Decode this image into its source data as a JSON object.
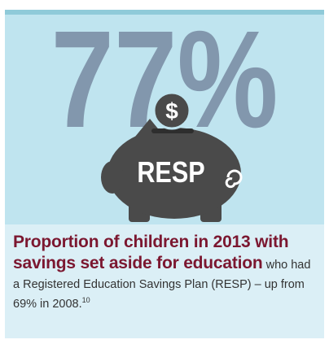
{
  "stat": {
    "text": "77%"
  },
  "icon": {
    "coin": "$",
    "label": "RESP"
  },
  "caption": {
    "highlight": "Proportion of children in 2013 with savings set aside for education",
    "body": "who had a Registered Education Savings Plan (RESP) – up from 69% in 2008.",
    "footnote": "10"
  }
}
